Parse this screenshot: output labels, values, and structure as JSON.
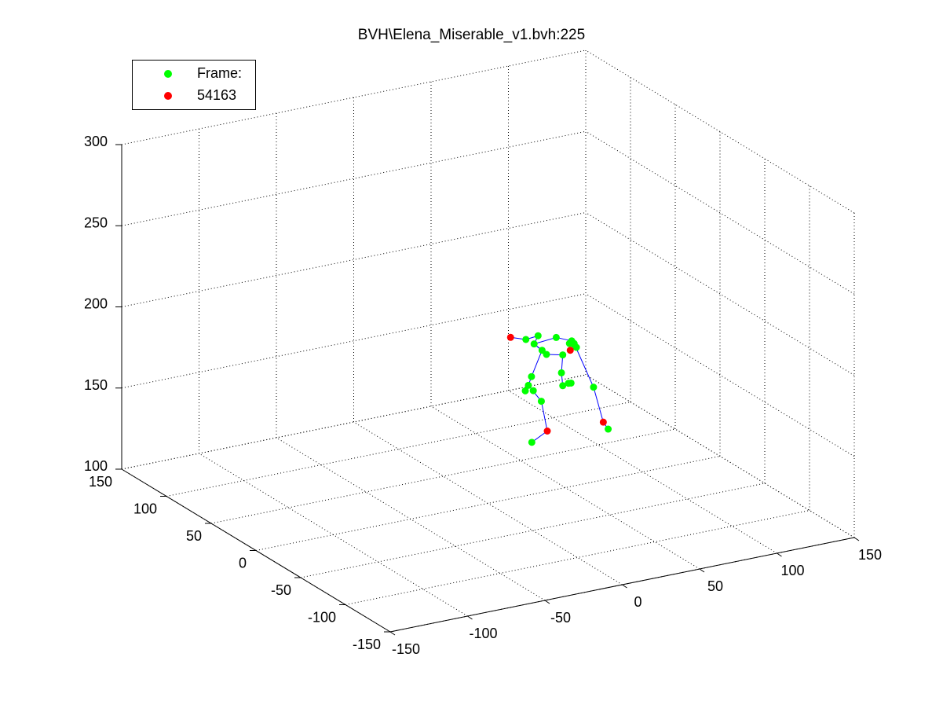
{
  "chart_data": {
    "type": "scatter",
    "title": "BVH\\Elena_Miserable_v1.bvh:225",
    "legend": {
      "placement": "top-left",
      "entries": [
        {
          "label": "Frame:",
          "color": "#00ff00"
        },
        {
          "label": "54163",
          "color": "#ff0000"
        }
      ]
    },
    "grid": true,
    "axes": {
      "x": {
        "ticks": [
          "-150",
          "-100",
          "-50",
          "0",
          "50",
          "100",
          "150"
        ],
        "range": [
          -150,
          150
        ]
      },
      "y": {
        "ticks": [
          "-150",
          "-100",
          "-50",
          "0",
          "50",
          "100",
          "150"
        ],
        "range": [
          -150,
          150
        ]
      },
      "z": {
        "ticks": [
          "100",
          "150",
          "200",
          "250",
          "300"
        ],
        "range": [
          100,
          300
        ]
      }
    },
    "colors": {
      "joint": "#00ff00",
      "end_effector": "#ff0000",
      "bone": "#0000ff",
      "grid": "#000000"
    },
    "joints": [
      {
        "name": "j0",
        "x": 70,
        "y": 65,
        "z": 168,
        "type": "joint"
      },
      {
        "name": "j1",
        "x": 58,
        "y": 75,
        "z": 166,
        "type": "end"
      },
      {
        "name": "j2",
        "x": 65,
        "y": 70,
        "z": 165,
        "type": "joint"
      },
      {
        "name": "j3",
        "x": 68,
        "y": 66,
        "z": 163,
        "type": "joint"
      },
      {
        "name": "j4",
        "x": 80,
        "y": 62,
        "z": 166,
        "type": "joint"
      },
      {
        "name": "j5",
        "x": 90,
        "y": 62,
        "z": 162,
        "type": "joint"
      },
      {
        "name": "j6",
        "x": 92,
        "y": 68,
        "z": 158,
        "type": "joint"
      },
      {
        "name": "j7",
        "x": 96,
        "y": 70,
        "z": 156,
        "type": "joint"
      },
      {
        "name": "j8",
        "x": 100,
        "y": 74,
        "z": 152,
        "type": "joint"
      },
      {
        "name": "j9",
        "x": 96,
        "y": 74,
        "z": 151,
        "type": "end"
      },
      {
        "name": "j10",
        "x": 102,
        "y": 80,
        "z": 152,
        "type": "joint"
      },
      {
        "name": "j11",
        "x": 90,
        "y": 72,
        "z": 150,
        "type": "joint"
      },
      {
        "name": "j12",
        "x": 76,
        "y": 66,
        "z": 155,
        "type": "joint"
      },
      {
        "name": "j13",
        "x": 72,
        "y": 64,
        "z": 159,
        "type": "joint"
      },
      {
        "name": "j14",
        "x": 64,
        "y": 62,
        "z": 145,
        "type": "joint"
      },
      {
        "name": "j15",
        "x": 62,
        "y": 62,
        "z": 140,
        "type": "joint"
      },
      {
        "name": "j16",
        "x": 60,
        "y": 62,
        "z": 137,
        "type": "joint"
      },
      {
        "name": "j17",
        "x": 64,
        "y": 60,
        "z": 137,
        "type": "joint"
      },
      {
        "name": "j18",
        "x": 88,
        "y": 70,
        "z": 140,
        "type": "joint"
      },
      {
        "name": "j19",
        "x": 90,
        "y": 72,
        "z": 131,
        "type": "joint"
      },
      {
        "name": "j20",
        "x": 96,
        "y": 76,
        "z": 130,
        "type": "joint"
      },
      {
        "name": "j21",
        "x": 100,
        "y": 80,
        "z": 128,
        "type": "joint"
      },
      {
        "name": "j22",
        "x": 75,
        "y": 70,
        "z": 125,
        "type": "joint"
      },
      {
        "name": "j23",
        "x": 80,
        "y": 72,
        "z": 105,
        "type": "end"
      },
      {
        "name": "j24",
        "x": 70,
        "y": 72,
        "z": 100,
        "type": "joint"
      },
      {
        "name": "j25",
        "x": 118,
        "y": 86,
        "z": 120,
        "type": "joint"
      },
      {
        "name": "j26",
        "x": 122,
        "y": 82,
        "z": 99,
        "type": "end"
      },
      {
        "name": "j27",
        "x": 124,
        "y": 80,
        "z": 95,
        "type": "joint"
      }
    ],
    "bones": [
      [
        1,
        2
      ],
      [
        2,
        0
      ],
      [
        0,
        3
      ],
      [
        3,
        4
      ],
      [
        4,
        5
      ],
      [
        5,
        6
      ],
      [
        6,
        7
      ],
      [
        7,
        8
      ],
      [
        8,
        9
      ],
      [
        9,
        10
      ],
      [
        3,
        12
      ],
      [
        12,
        11
      ],
      [
        11,
        18
      ],
      [
        18,
        19
      ],
      [
        19,
        20
      ],
      [
        20,
        21
      ],
      [
        3,
        13
      ],
      [
        13,
        14
      ],
      [
        14,
        15
      ],
      [
        15,
        16
      ],
      [
        15,
        17
      ],
      [
        15,
        22
      ],
      [
        22,
        23
      ],
      [
        23,
        24
      ],
      [
        10,
        25
      ],
      [
        25,
        26
      ],
      [
        26,
        27
      ]
    ]
  }
}
